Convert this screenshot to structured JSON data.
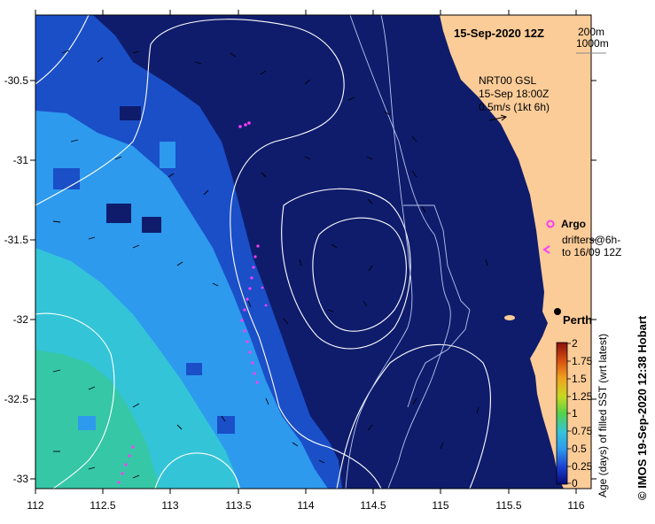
{
  "title": "15-Sep-2020 12Z",
  "contour_legend": {
    "line1": "200m",
    "line2": "1000m"
  },
  "current_box": {
    "line1": "NRT00 GSL",
    "line2": "15-Sep 18:00Z",
    "line3": "0.5m/s (1kt 6h)"
  },
  "argo_label": "Argo",
  "drifters_label": {
    "line1": "drifters@6h-",
    "line2": "to 16/09 12Z"
  },
  "city_label": "Perth",
  "colorbar": {
    "label": "Age (days) of filled SST (wrt latest)",
    "ticks": [
      "2",
      "1.75",
      "1.5",
      "1.25",
      "1",
      "0.75",
      "0.5",
      "0.25",
      "0"
    ]
  },
  "credit": "© IMOS 19-Sep-2020 12:38 Hobart",
  "axes": {
    "x_ticks": [
      "112",
      "112.5",
      "113",
      "113.5",
      "114",
      "114.5",
      "115",
      "115.5",
      "116"
    ],
    "y_ticks": [
      "-30.5",
      "-31",
      "-31.5",
      "-32",
      "-32.5",
      "-33"
    ]
  },
  "colors": {
    "land": "#fccc98",
    "deep": "#0f1c6c",
    "mid": "#1a4fc8",
    "light": "#2d9aee",
    "cyan": "#33c4d8",
    "teal": "#36c7a6",
    "drifter": "#ff3df5"
  }
}
